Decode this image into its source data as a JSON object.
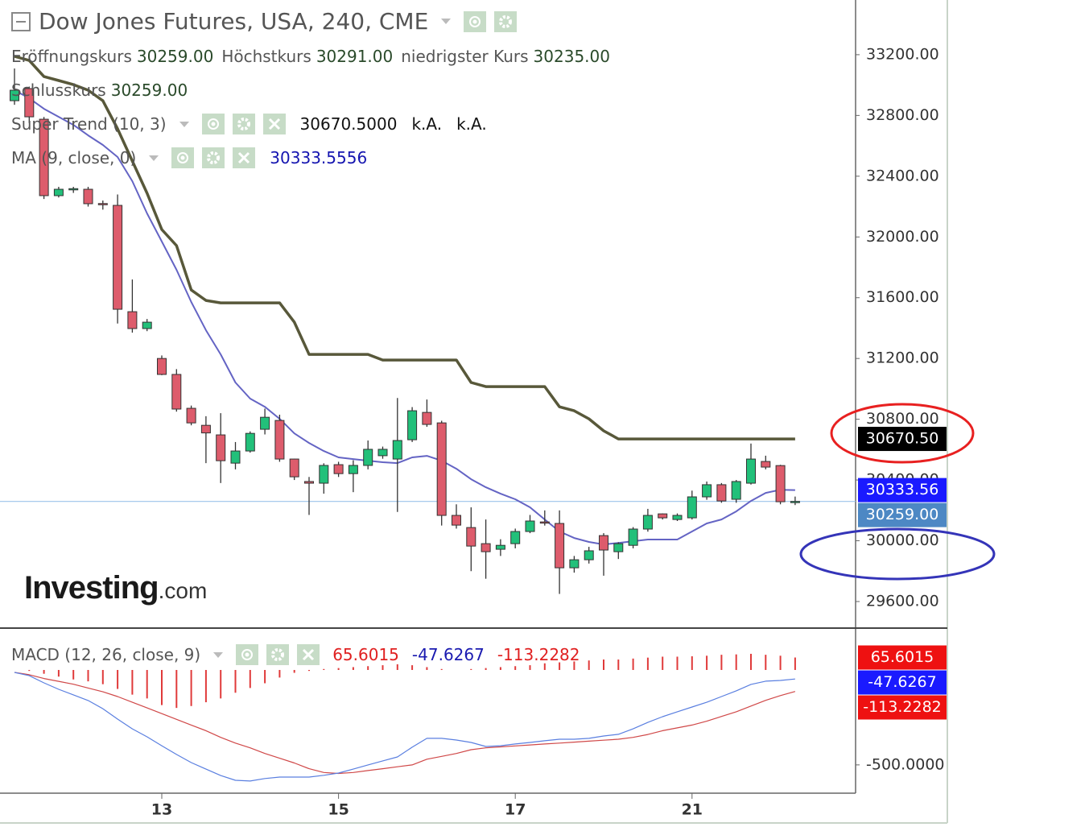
{
  "header": {
    "title": "Dow Jones Futures, USA, 240, CME"
  },
  "chart_data": [
    {
      "type": "candlestick",
      "ohlc_legend": [
        {
          "label": "Eröffnungskurs",
          "value": "30259.00"
        },
        {
          "label": "Höchstkurs",
          "value": "30291.00"
        },
        {
          "label": "niedrigster Kurs",
          "value": "30235.00"
        },
        {
          "label": "Schlusskurs",
          "value": "30259.00"
        }
      ],
      "categories": [
        null,
        null,
        null,
        null,
        null,
        null,
        null,
        null,
        null,
        null,
        "13",
        null,
        null,
        null,
        null,
        null,
        null,
        null,
        null,
        null,
        null,
        null,
        "15",
        null,
        null,
        null,
        null,
        null,
        null,
        null,
        null,
        null,
        null,
        null,
        "17",
        null,
        null,
        null,
        null,
        null,
        null,
        null,
        null,
        null,
        null,
        null,
        "21",
        null,
        null,
        null,
        null,
        null,
        null,
        null
      ],
      "open": [
        32897,
        32977,
        32775,
        32272,
        32310,
        32314,
        32220,
        32208,
        31508,
        31397,
        31200,
        31095,
        30872,
        30760,
        30697,
        30511,
        30591,
        30734,
        30792,
        30538,
        30390,
        30379,
        30501,
        30442,
        30496,
        30560,
        30538,
        30665,
        30845,
        30776,
        30167,
        30087,
        29981,
        29944,
        29981,
        30061,
        30124,
        30114,
        29822,
        29875,
        30034,
        29928,
        29970,
        30077,
        30177,
        30140,
        30151,
        30289,
        30369,
        30273,
        30379,
        30522,
        30495,
        30259
      ],
      "high": [
        33109,
        32990,
        32790,
        32330,
        32330,
        32330,
        32240,
        32280,
        31720,
        31460,
        31220,
        31130,
        30890,
        30820,
        30840,
        30650,
        30720,
        30870,
        30830,
        30540,
        30420,
        30510,
        30520,
        30530,
        30660,
        30620,
        30940,
        30880,
        30930,
        30790,
        30240,
        30220,
        30140,
        30010,
        30080,
        30170,
        30200,
        30200,
        29900,
        29960,
        30050,
        29990,
        30090,
        30210,
        30180,
        30180,
        30330,
        30390,
        30380,
        30400,
        30640,
        30560,
        30500,
        30291
      ],
      "low": [
        32870,
        32750,
        32250,
        32260,
        32290,
        32200,
        32180,
        31430,
        31370,
        31380,
        31090,
        30850,
        30760,
        30511,
        30380,
        30470,
        30580,
        30700,
        30520,
        30400,
        30170,
        30310,
        30420,
        30320,
        30470,
        30540,
        30190,
        30650,
        30750,
        30100,
        30080,
        29800,
        29750,
        29900,
        29950,
        30050,
        30100,
        29650,
        29790,
        29850,
        29770,
        29880,
        29950,
        30060,
        30140,
        30130,
        30140,
        30270,
        30250,
        30250,
        30370,
        30470,
        30240,
        30235
      ],
      "close": [
        32966,
        32791,
        32272,
        32314,
        32318,
        32219,
        32215,
        31524,
        31397,
        31439,
        31095,
        30867,
        30776,
        30710,
        30527,
        30591,
        30707,
        30813,
        30538,
        30421,
        30379,
        30496,
        30442,
        30496,
        30602,
        30602,
        30660,
        30856,
        30766,
        30167,
        30103,
        29965,
        29928,
        29970,
        30061,
        30130,
        30120,
        29822,
        29875,
        29934,
        29939,
        29981,
        30077,
        30167,
        30151,
        30167,
        30289,
        30369,
        30262,
        30390,
        30538,
        30485,
        30257,
        30259
      ],
      "up_color": "#22c07a",
      "down_color": "#dd5c6c",
      "overlays": [
        {
          "name": "Super Trend (10, 3)",
          "color": "#58583a",
          "legend_values": [
            "30670.5000",
            "k.A.",
            "k.A."
          ],
          "legend_color": "#111111",
          "values": [
            33189,
            33162,
            33056,
            33030,
            33003,
            32966,
            32897,
            32712,
            32500,
            32288,
            32049,
            31943,
            31651,
            31582,
            31566,
            31566,
            31566,
            31566,
            31566,
            31439,
            31227,
            31227,
            31227,
            31227,
            31227,
            31190,
            31190,
            31190,
            31190,
            31190,
            31190,
            31042,
            31015,
            31015,
            31015,
            31015,
            31015,
            30882,
            30856,
            30803,
            30724,
            30670.5,
            30670.5,
            30670.5,
            30670.5,
            30670.5,
            30670.5,
            30670.5,
            30670.5,
            30670.5,
            30670.5,
            30670.5,
            30670.5,
            30670.5
          ]
        },
        {
          "name": "MA (9, close, 0)",
          "color": "#6464c4",
          "legend_values": [
            "30333.5556"
          ],
          "legend_color": "#1515b0",
          "values": [
            32966,
            32913,
            32844,
            32791,
            32738,
            32669,
            32606,
            32526,
            32367,
            32155,
            31970,
            31784,
            31572,
            31386,
            31227,
            31042,
            30936,
            30882,
            30803,
            30707,
            30644,
            30591,
            30549,
            30538,
            30527,
            30517,
            30511,
            30549,
            30559,
            30527,
            30474,
            30405,
            30352,
            30310,
            30273,
            30220,
            30140,
            30061,
            30018,
            29992,
            29976,
            29986,
            29997,
            30008,
            30008,
            30008,
            30061,
            30114,
            30140,
            30193,
            30262,
            30315,
            30336,
            30333.5556
          ]
        }
      ],
      "price_labels": [
        {
          "value": 30670.5,
          "label": "30670.50",
          "color": "#000000"
        },
        {
          "value": 30333.5556,
          "label": "30333.56",
          "color": "#1a1aff"
        },
        {
          "value": 30259,
          "label": "30259.00",
          "color": "#4d88c4"
        }
      ],
      "ylim": [
        29425,
        33560
      ],
      "yticks": [
        {
          "value": 29600,
          "label": "29600.00"
        },
        {
          "value": 30000,
          "label": "30000.00"
        },
        {
          "value": 30400,
          "label": "30400.00"
        },
        {
          "value": 30800,
          "label": "30800.00"
        },
        {
          "value": 31200,
          "label": "31200.00"
        },
        {
          "value": 31600,
          "label": "31600.00"
        },
        {
          "value": 32000,
          "label": "32000.00"
        },
        {
          "value": 32400,
          "label": "32400.00"
        },
        {
          "value": 32800,
          "label": "32800.00"
        },
        {
          "value": 33200,
          "label": "33200.00"
        }
      ],
      "watermark": {
        "brand": "Investing",
        "suffix": ".com"
      }
    },
    {
      "type": "macd",
      "title": "MACD (12, 26, close, 9)",
      "legend_values": [
        {
          "text": "65.6015",
          "color": "#e02020"
        },
        {
          "text": "-47.6267",
          "color": "#1a1ab0"
        },
        {
          "text": "-113.2282",
          "color": "#e02020"
        }
      ],
      "histogram": {
        "color": "#e03a3a",
        "values": [
          0,
          -5,
          -20,
          -35,
          -50,
          -60,
          -75,
          -100,
          -130,
          -150,
          -185,
          -200,
          -190,
          -170,
          -150,
          -120,
          -95,
          -70,
          -40,
          -15,
          -5,
          5,
          10,
          15,
          20,
          25,
          30,
          25,
          15,
          5,
          0,
          5,
          10,
          15,
          20,
          25,
          35,
          40,
          45,
          50,
          55,
          55,
          60,
          65,
          70,
          70,
          72,
          75,
          80,
          82,
          85,
          80,
          75,
          65.6015
        ]
      },
      "macd": {
        "color": "#5a7fe0",
        "values": [
          -13,
          -30,
          -68,
          -102,
          -131,
          -161,
          -204,
          -259,
          -310,
          -352,
          -399,
          -445,
          -488,
          -522,
          -556,
          -581,
          -585,
          -572,
          -564,
          -564,
          -564,
          -555,
          -543,
          -522,
          -500,
          -479,
          -458,
          -407,
          -360,
          -360,
          -369,
          -382,
          -403,
          -399,
          -390,
          -382,
          -373,
          -365,
          -365,
          -360,
          -348,
          -339,
          -310,
          -276,
          -246,
          -220,
          -195,
          -170,
          -140,
          -110,
          -76,
          -59,
          -55,
          -47.6267
        ]
      },
      "signal": {
        "color": "#d04848",
        "values": [
          -13,
          -25,
          -45,
          -60,
          -75,
          -95,
          -115,
          -140,
          -170,
          -200,
          -230,
          -260,
          -290,
          -320,
          -355,
          -385,
          -410,
          -440,
          -465,
          -490,
          -520,
          -540,
          -545,
          -540,
          -530,
          -520,
          -510,
          -500,
          -470,
          -455,
          -440,
          -420,
          -410,
          -405,
          -400,
          -395,
          -390,
          -385,
          -380,
          -375,
          -370,
          -365,
          -355,
          -340,
          -320,
          -305,
          -290,
          -270,
          -245,
          -220,
          -190,
          -160,
          -135,
          -113.2282
        ]
      },
      "price_labels": [
        {
          "value": 65.6015,
          "label": "65.6015",
          "color": "#ee1111"
        },
        {
          "value": -47.6267,
          "label": "-47.6267",
          "color": "#1a1aff"
        },
        {
          "value": -113.2282,
          "label": "-113.2282",
          "color": "#ee1111"
        }
      ],
      "ylim": [
        -649,
        212
      ],
      "yticks": [
        {
          "value": -500,
          "label": "-500.0000"
        }
      ]
    }
  ]
}
